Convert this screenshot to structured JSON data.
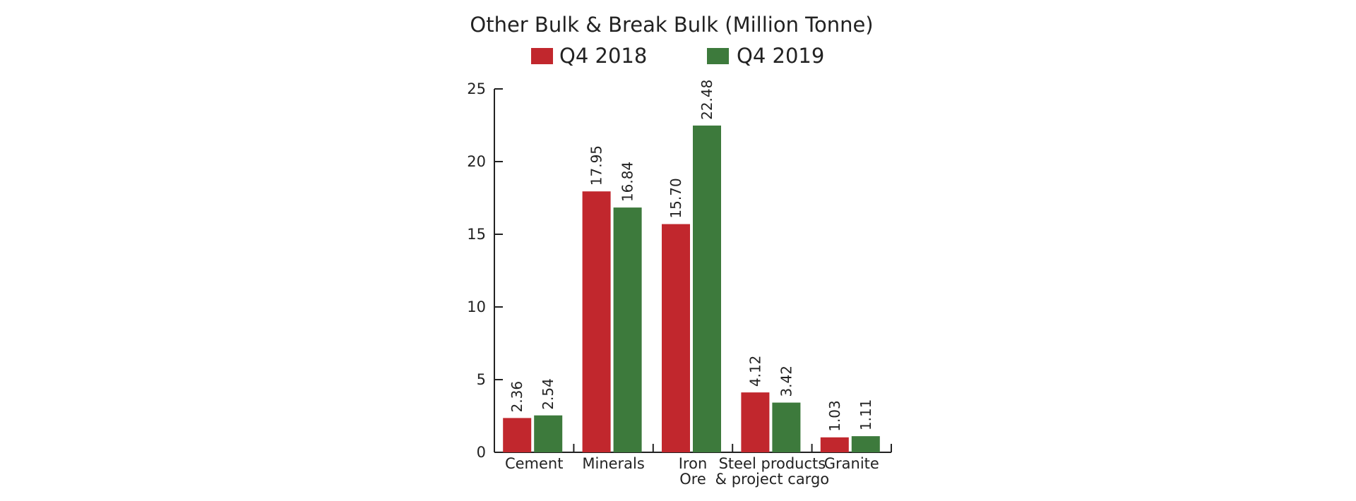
{
  "chart_data": {
    "type": "bar",
    "title": "Other Bulk & Break Bulk (Million Tonne)",
    "xlabel": "",
    "ylabel": "",
    "ylim": [
      0,
      25
    ],
    "yticks": [
      0,
      5,
      10,
      15,
      20,
      25
    ],
    "grid": false,
    "legend_position": "top",
    "categories": [
      [
        "Cement"
      ],
      [
        "Minerals"
      ],
      [
        "Iron",
        "Ore"
      ],
      [
        "Steel products",
        "& project cargo"
      ],
      [
        "Granite"
      ]
    ],
    "series": [
      {
        "name": "Q4 2018",
        "color": "#c1272d",
        "values": [
          2.36,
          17.95,
          15.7,
          4.12,
          1.03
        ],
        "labels": [
          "2.36",
          "17.95",
          "15.70",
          "4.12",
          "1.03"
        ]
      },
      {
        "name": "Q4 2019",
        "color": "#3d7a3c",
        "values": [
          2.54,
          16.84,
          22.48,
          3.42,
          1.11
        ],
        "labels": [
          "2.54",
          "16.84",
          "22.48",
          "3.42",
          "1.11"
        ]
      }
    ]
  }
}
